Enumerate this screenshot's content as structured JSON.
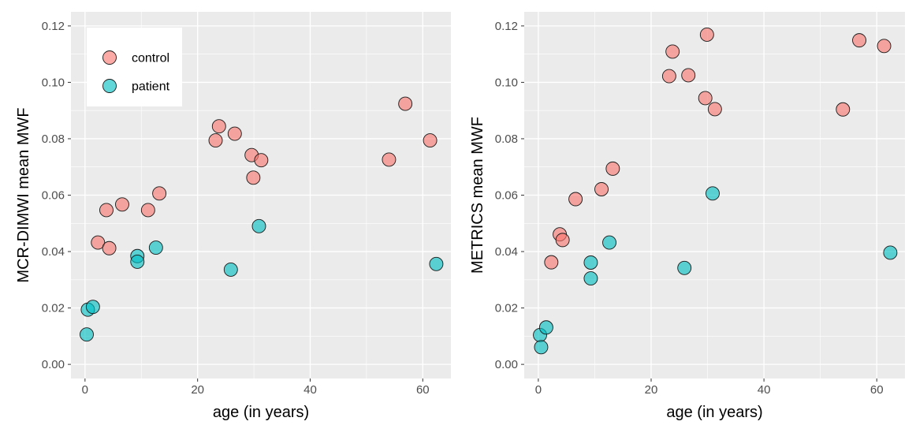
{
  "chart_data": [
    {
      "type": "scatter",
      "xlabel": "age (in years)",
      "ylabel": "MCR-DIMWI mean MWF",
      "xlim": [
        -2.5,
        65
      ],
      "ylim": [
        -0.005,
        0.125
      ],
      "xticks": [
        0,
        20,
        40,
        60
      ],
      "yticks": [
        0,
        0.02,
        0.04,
        0.06,
        0.08,
        0.1,
        0.12
      ],
      "xtick_labels": [
        "0",
        "20",
        "40",
        "60"
      ],
      "ytick_labels": [
        "0.00",
        "0.02",
        "0.04",
        "0.06",
        "0.08",
        "0.10",
        "0.12"
      ],
      "grid": true,
      "legend": {
        "position": "top-left",
        "entries": [
          {
            "label": "control",
            "color": "#F8766D"
          },
          {
            "label": "patient",
            "color": "#00BFC4"
          }
        ]
      },
      "series": [
        {
          "name": "control",
          "color": "#F8766D",
          "points": [
            {
              "x": 2.3,
              "y": 0.0432
            },
            {
              "x": 3.8,
              "y": 0.0547
            },
            {
              "x": 4.3,
              "y": 0.0412
            },
            {
              "x": 6.6,
              "y": 0.0567
            },
            {
              "x": 11.2,
              "y": 0.0547
            },
            {
              "x": 13.2,
              "y": 0.0606
            },
            {
              "x": 23.2,
              "y": 0.0794
            },
            {
              "x": 23.8,
              "y": 0.0844
            },
            {
              "x": 26.6,
              "y": 0.0818
            },
            {
              "x": 29.6,
              "y": 0.0742
            },
            {
              "x": 29.9,
              "y": 0.0662
            },
            {
              "x": 31.3,
              "y": 0.0724
            },
            {
              "x": 54.0,
              "y": 0.0726
            },
            {
              "x": 56.9,
              "y": 0.0924
            },
            {
              "x": 61.3,
              "y": 0.0794
            }
          ]
        },
        {
          "name": "patient",
          "color": "#00BFC4",
          "points": [
            {
              "x": 0.3,
              "y": 0.0106
            },
            {
              "x": 0.5,
              "y": 0.0194
            },
            {
              "x": 1.4,
              "y": 0.0204
            },
            {
              "x": 9.3,
              "y": 0.0384
            },
            {
              "x": 9.3,
              "y": 0.0364
            },
            {
              "x": 12.6,
              "y": 0.0414
            },
            {
              "x": 25.9,
              "y": 0.0336
            },
            {
              "x": 30.9,
              "y": 0.049
            },
            {
              "x": 62.4,
              "y": 0.0356
            }
          ]
        }
      ]
    },
    {
      "type": "scatter",
      "xlabel": "age (in years)",
      "ylabel": "METRICS mean MWF",
      "xlim": [
        -2.5,
        65
      ],
      "ylim": [
        -0.005,
        0.125
      ],
      "xticks": [
        0,
        20,
        40,
        60
      ],
      "yticks": [
        0,
        0.02,
        0.04,
        0.06,
        0.08,
        0.1,
        0.12
      ],
      "xtick_labels": [
        "0",
        "20",
        "40",
        "60"
      ],
      "ytick_labels": [
        "0.00",
        "0.02",
        "0.04",
        "0.06",
        "0.08",
        "0.10",
        "0.12"
      ],
      "grid": true,
      "series": [
        {
          "name": "control",
          "color": "#F8766D",
          "points": [
            {
              "x": 2.3,
              "y": 0.0362
            },
            {
              "x": 3.8,
              "y": 0.0461
            },
            {
              "x": 4.3,
              "y": 0.0441
            },
            {
              "x": 6.6,
              "y": 0.0586
            },
            {
              "x": 11.2,
              "y": 0.0621
            },
            {
              "x": 13.2,
              "y": 0.0694
            },
            {
              "x": 23.2,
              "y": 0.1022
            },
            {
              "x": 23.8,
              "y": 0.1109
            },
            {
              "x": 26.6,
              "y": 0.1025
            },
            {
              "x": 29.6,
              "y": 0.0944
            },
            {
              "x": 29.9,
              "y": 0.1169
            },
            {
              "x": 31.3,
              "y": 0.0905
            },
            {
              "x": 54.0,
              "y": 0.0904
            },
            {
              "x": 56.9,
              "y": 0.1149
            },
            {
              "x": 61.3,
              "y": 0.1129
            }
          ]
        },
        {
          "name": "patient",
          "color": "#00BFC4",
          "points": [
            {
              "x": 0.3,
              "y": 0.0104
            },
            {
              "x": 0.5,
              "y": 0.0061
            },
            {
              "x": 1.4,
              "y": 0.0131
            },
            {
              "x": 9.3,
              "y": 0.0361
            },
            {
              "x": 9.3,
              "y": 0.0305
            },
            {
              "x": 12.6,
              "y": 0.0432
            },
            {
              "x": 25.9,
              "y": 0.0342
            },
            {
              "x": 30.9,
              "y": 0.0606
            },
            {
              "x": 62.4,
              "y": 0.0396
            }
          ]
        }
      ]
    }
  ]
}
